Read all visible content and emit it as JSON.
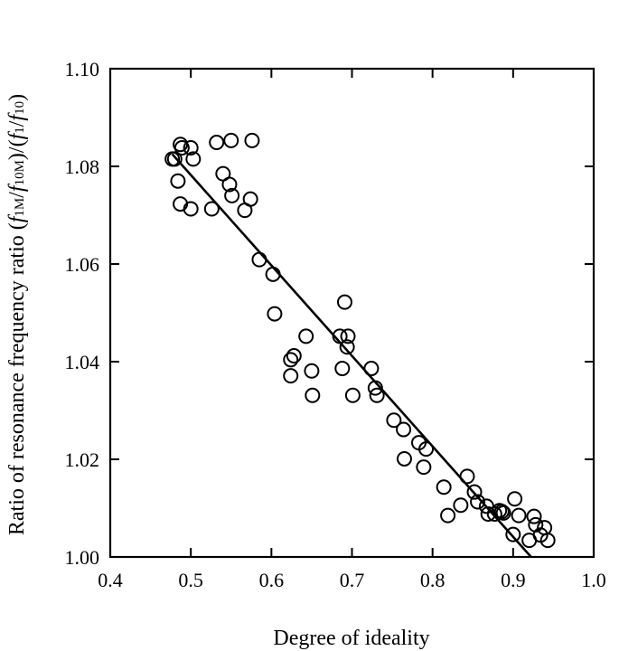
{
  "chart_data": {
    "type": "scatter",
    "title": "",
    "xlabel": "Degree of ideality",
    "ylabel": "Ratio of resonance frequency ratio (f1M/f10M)/(f1/f10)",
    "ylabel_parts": {
      "prefix": "Ratio of resonance frequency ratio (",
      "f": "f",
      "sub_1M": "1M",
      "sub_10M": "10M",
      "sub_1": "1",
      "sub_10": "10",
      "slash": "/",
      "mid": ")/(",
      "suffix": ")"
    },
    "xlim": [
      0.4,
      1.0
    ],
    "ylim": [
      1.0,
      1.1
    ],
    "x_ticks": [
      0.4,
      0.5,
      0.6,
      0.7,
      0.8,
      0.9,
      1.0
    ],
    "x_tick_labels": [
      "0.4",
      "0.5",
      "0.6",
      "0.7",
      "0.8",
      "0.9",
      "1.0"
    ],
    "y_ticks": [
      1.0,
      1.02,
      1.04,
      1.06,
      1.08,
      1.1
    ],
    "y_tick_labels": [
      "1.00",
      "1.02",
      "1.04",
      "1.06",
      "1.08",
      "1.10"
    ],
    "grid": false,
    "legend": "none",
    "points": [
      [
        0.477,
        1.0815
      ],
      [
        0.48,
        1.0815
      ],
      [
        0.487,
        1.0845
      ],
      [
        0.489,
        1.0838
      ],
      [
        0.484,
        1.077
      ],
      [
        0.487,
        1.0723
      ],
      [
        0.5,
        1.0713
      ],
      [
        0.5,
        1.0838
      ],
      [
        0.503,
        1.0815
      ],
      [
        0.526,
        1.0713
      ],
      [
        0.532,
        1.0849
      ],
      [
        0.54,
        1.0785
      ],
      [
        0.548,
        1.0763
      ],
      [
        0.551,
        1.074
      ],
      [
        0.55,
        1.0853
      ],
      [
        0.567,
        1.071
      ],
      [
        0.574,
        1.0733
      ],
      [
        0.576,
        1.0853
      ],
      [
        0.585,
        1.0609
      ],
      [
        0.602,
        1.0579
      ],
      [
        0.604,
        1.0498
      ],
      [
        0.624,
        1.0404
      ],
      [
        0.624,
        1.0371
      ],
      [
        0.628,
        1.0412
      ],
      [
        0.643,
        1.0452
      ],
      [
        0.65,
        1.0381
      ],
      [
        0.651,
        1.0331
      ],
      [
        0.685,
        1.0452
      ],
      [
        0.688,
        1.0386
      ],
      [
        0.691,
        1.0522
      ],
      [
        0.694,
        1.043
      ],
      [
        0.695,
        1.0452
      ],
      [
        0.701,
        1.0331
      ],
      [
        0.724,
        1.0386
      ],
      [
        0.729,
        1.0346
      ],
      [
        0.731,
        1.0331
      ],
      [
        0.752,
        1.028
      ],
      [
        0.764,
        1.0261
      ],
      [
        0.765,
        1.0201
      ],
      [
        0.783,
        1.0234
      ],
      [
        0.789,
        1.0184
      ],
      [
        0.792,
        1.0221
      ],
      [
        0.814,
        1.0143
      ],
      [
        0.819,
        1.0085
      ],
      [
        0.835,
        1.0106
      ],
      [
        0.843,
        1.0165
      ],
      [
        0.852,
        1.0133
      ],
      [
        0.856,
        1.0113
      ],
      [
        0.867,
        1.0104
      ],
      [
        0.869,
        1.0088
      ],
      [
        0.877,
        1.0088
      ],
      [
        0.883,
        1.0095
      ],
      [
        0.886,
        1.0093
      ],
      [
        0.888,
        1.009
      ],
      [
        0.9,
        1.0046
      ],
      [
        0.902,
        1.0119
      ],
      [
        0.907,
        1.0085
      ],
      [
        0.92,
        1.0034
      ],
      [
        0.926,
        1.0083
      ],
      [
        0.928,
        1.0066
      ],
      [
        0.934,
        1.0045
      ],
      [
        0.939,
        1.006
      ],
      [
        0.943,
        1.0034
      ]
    ],
    "fit_line": [
      [
        0.477,
        1.0825
      ],
      [
        0.925,
        0.9995
      ]
    ]
  }
}
